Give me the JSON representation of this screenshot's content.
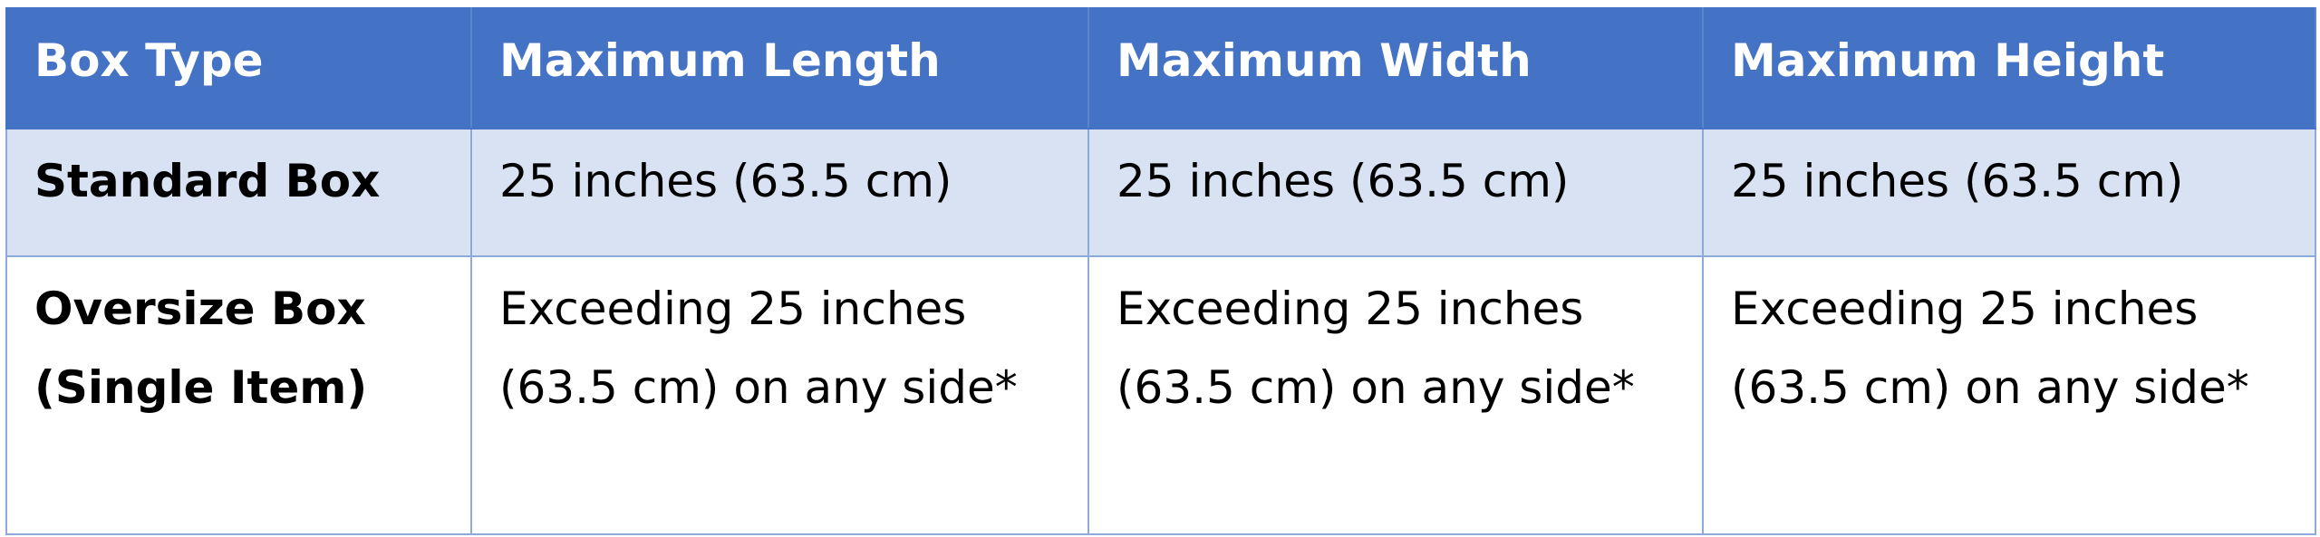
{
  "colors": {
    "header_bg": "#4472C4",
    "band_bg": "#D9E2F3",
    "border": "#8EAADB"
  },
  "table": {
    "headers": [
      "Box Type",
      "Maximum Length",
      "Maximum Width",
      "Maximum Height"
    ],
    "rows": [
      [
        "Standard Box",
        "25 inches (63.5 cm)",
        "25 inches (63.5 cm)",
        "25 inches (63.5 cm)"
      ],
      [
        "Oversize Box (Single Item)",
        "Exceeding 25 inches (63.5 cm) on any side*",
        "Exceeding 25 inches (63.5 cm) on any side*",
        "Exceeding 25 inches (63.5 cm) on any side*"
      ]
    ]
  }
}
